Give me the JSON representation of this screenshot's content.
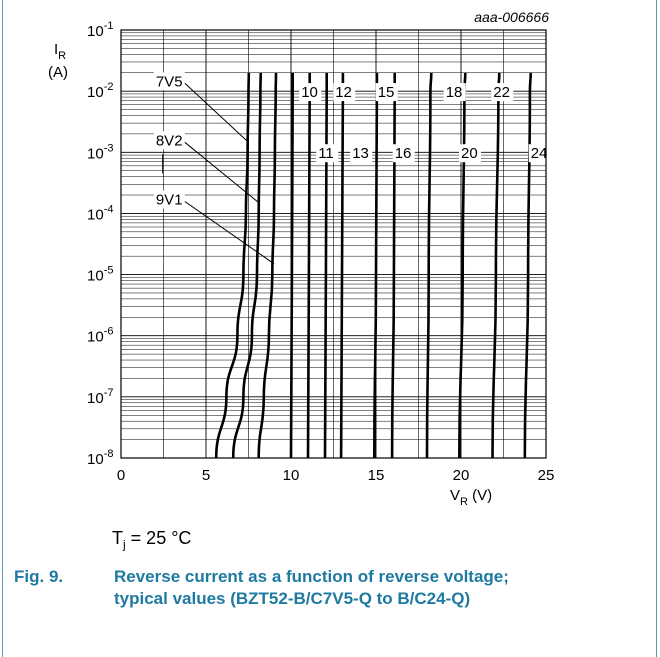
{
  "figure_id": "aaa-006666",
  "conditions": {
    "symbol": "T",
    "subscript": "j",
    "value": " = 25 °C"
  },
  "caption": {
    "number": "Fig. 9.",
    "text": "Reverse current as a function of reverse voltage; typical values (BZT52-B/C7V5-Q to B/C24-Q)"
  },
  "colors": {
    "caption": "#1e7aa0",
    "frame": "#5b9bb0",
    "curve": "#000000"
  },
  "chart_data": {
    "type": "line",
    "y_scale": "log",
    "xlim": [
      0,
      25
    ],
    "ylim": [
      1e-08,
      0.1
    ],
    "grid": true,
    "x_ticks": [
      "0",
      "5",
      "10",
      "15",
      "20",
      "25"
    ],
    "y_ticks": [
      {
        "base": "10",
        "exp": "-1"
      },
      {
        "base": "10",
        "exp": "-2"
      },
      {
        "base": "10",
        "exp": "-3"
      },
      {
        "base": "10",
        "exp": "-4"
      },
      {
        "base": "10",
        "exp": "-5"
      },
      {
        "base": "10",
        "exp": "-6"
      },
      {
        "base": "10",
        "exp": "-7"
      },
      {
        "base": "10",
        "exp": "-8"
      }
    ],
    "x_label": {
      "symbol": "V",
      "sub": "R",
      "unit": "(V)"
    },
    "y_label": {
      "symbol": "I",
      "sub": "R",
      "unit": "(A)"
    },
    "series": [
      {
        "name": "7V5",
        "points": [
          [
            5.6,
            1e-08
          ],
          [
            6.2,
            1e-07
          ],
          [
            6.85,
            1e-06
          ],
          [
            7.2,
            1e-05
          ],
          [
            7.35,
            0.0001
          ],
          [
            7.45,
            0.001
          ],
          [
            7.5,
            0.01
          ],
          [
            7.52,
            0.02
          ]
        ]
      },
      {
        "name": "8V2",
        "points": [
          [
            6.6,
            1e-08
          ],
          [
            7.2,
            1e-07
          ],
          [
            7.7,
            1e-06
          ],
          [
            8.0,
            1e-05
          ],
          [
            8.1,
            0.0001
          ],
          [
            8.15,
            0.001
          ],
          [
            8.2,
            0.01
          ],
          [
            8.22,
            0.02
          ]
        ]
      },
      {
        "name": "9V1",
        "points": [
          [
            8.1,
            1e-08
          ],
          [
            8.4,
            1e-07
          ],
          [
            8.7,
            1e-06
          ],
          [
            8.9,
            1e-05
          ],
          [
            9.0,
            0.0001
          ],
          [
            9.05,
            0.001
          ],
          [
            9.1,
            0.01
          ],
          [
            9.12,
            0.02
          ]
        ]
      },
      {
        "name": "10",
        "points": [
          [
            10.0,
            1e-08
          ],
          [
            10.05,
            1e-05
          ],
          [
            10.1,
            0.01
          ],
          [
            10.1,
            0.02
          ]
        ]
      },
      {
        "name": "11",
        "points": [
          [
            11.0,
            1e-08
          ],
          [
            11.05,
            1e-05
          ],
          [
            11.1,
            0.01
          ],
          [
            11.1,
            0.02
          ]
        ]
      },
      {
        "name": "12",
        "points": [
          [
            12.0,
            1e-08
          ],
          [
            12.05,
            1e-05
          ],
          [
            12.1,
            0.01
          ],
          [
            12.1,
            0.02
          ]
        ]
      },
      {
        "name": "13",
        "points": [
          [
            12.95,
            1e-08
          ],
          [
            13.0,
            1e-05
          ],
          [
            13.05,
            0.01
          ],
          [
            13.05,
            0.02
          ]
        ]
      },
      {
        "name": "15",
        "points": [
          [
            14.9,
            1e-08
          ],
          [
            15.0,
            1e-05
          ],
          [
            15.05,
            0.01
          ],
          [
            15.05,
            0.02
          ]
        ]
      },
      {
        "name": "16",
        "points": [
          [
            15.95,
            1e-08
          ],
          [
            16.05,
            1e-05
          ],
          [
            16.1,
            0.01
          ],
          [
            16.1,
            0.02
          ]
        ]
      },
      {
        "name": "18",
        "points": [
          [
            18.0,
            1e-08
          ],
          [
            18.1,
            1e-05
          ],
          [
            18.2,
            0.01
          ],
          [
            18.25,
            0.02
          ]
        ]
      },
      {
        "name": "20",
        "points": [
          [
            19.9,
            1e-08
          ],
          [
            20.1,
            1e-05
          ],
          [
            20.2,
            0.01
          ],
          [
            20.25,
            0.02
          ]
        ]
      },
      {
        "name": "22",
        "points": [
          [
            21.85,
            1e-08
          ],
          [
            22.05,
            1e-05
          ],
          [
            22.2,
            0.01
          ],
          [
            22.25,
            0.02
          ]
        ]
      },
      {
        "name": "24",
        "points": [
          [
            23.75,
            1e-08
          ],
          [
            23.95,
            1e-05
          ],
          [
            24.05,
            0.01
          ],
          [
            24.1,
            0.02
          ]
        ]
      }
    ],
    "labels": [
      {
        "text": "7V5",
        "series": "7V5",
        "at": [
          2.05,
          0.012
        ],
        "leader_to": [
          7.45,
          0.0015
        ]
      },
      {
        "text": "8V2",
        "series": "8V2",
        "at": [
          2.05,
          0.0013
        ],
        "leader_to": [
          8.1,
          0.00015
        ]
      },
      {
        "text": "9V1",
        "series": "9V1",
        "at": [
          2.05,
          0.00014
        ],
        "leader_to": [
          9.0,
          1.5e-05
        ]
      },
      {
        "text": "10",
        "at": [
          10.6,
          0.008
        ]
      },
      {
        "text": "12",
        "at": [
          12.6,
          0.008
        ]
      },
      {
        "text": "15",
        "at": [
          15.1,
          0.008
        ]
      },
      {
        "text": "18",
        "at": [
          19.1,
          0.008
        ]
      },
      {
        "text": "22",
        "at": [
          21.9,
          0.008
        ]
      },
      {
        "text": "11",
        "at": [
          11.6,
          0.0008
        ]
      },
      {
        "text": "13",
        "at": [
          13.6,
          0.0008
        ]
      },
      {
        "text": "16",
        "at": [
          16.1,
          0.0008
        ]
      },
      {
        "text": "20",
        "at": [
          20.0,
          0.0008
        ]
      },
      {
        "text": "24",
        "at": [
          24.1,
          0.0008
        ]
      }
    ]
  }
}
